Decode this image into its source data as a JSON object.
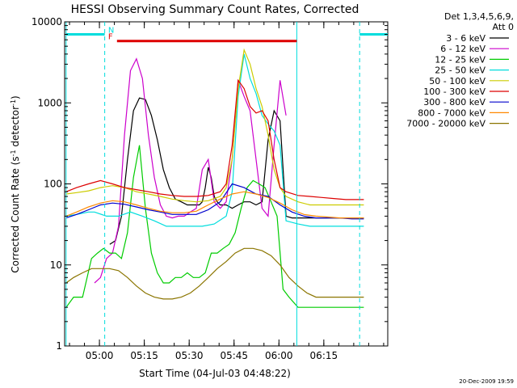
{
  "chart_data": {
    "type": "line",
    "title": "HESSI Observing Summary Count Rates, Corrected",
    "xlabel": "Start Time (04-Jul-03 04:48:22)",
    "ylabel": "Corrected Count Rate (s⁻¹ detector⁻¹)",
    "ylabel_main": "Corrected Count Rate (s",
    "ylabel_sup1": "-1",
    "ylabel_mid": " detector",
    "ylabel_sup2": "-1",
    "ylabel_end": ")",
    "x_unit": "minutes since 04:48:22",
    "xlim": [
      0,
      108
    ],
    "ylim": [
      1,
      10000
    ],
    "log_y": true,
    "x_ticks": [
      {
        "x": 11.63,
        "label": "05:00"
      },
      {
        "x": 26.63,
        "label": "05:15"
      },
      {
        "x": 41.63,
        "label": "05:30"
      },
      {
        "x": 56.63,
        "label": "05:45"
      },
      {
        "x": 71.63,
        "label": "06:00"
      },
      {
        "x": 86.63,
        "label": "06:15"
      }
    ],
    "y_ticks": [
      {
        "y": 1,
        "label": "1"
      },
      {
        "y": 10,
        "label": "10"
      },
      {
        "y": 100,
        "label": "100"
      },
      {
        "y": 1000,
        "label": "1000"
      },
      {
        "y": 10000,
        "label": "10000"
      }
    ],
    "legend_title": "Det 1,3,4,5,6,9,",
    "legend_title2": "Att 0",
    "legend_placement": "right",
    "series": [
      {
        "name": "3 - 6 keV",
        "color": "#000000",
        "x": [
          0.5,
          10,
          15,
          15.1,
          17,
          19,
          21,
          23,
          25,
          27,
          29,
          31,
          33,
          35,
          37,
          39,
          41,
          43,
          45,
          46,
          47,
          48,
          49,
          50,
          51,
          52,
          54,
          56,
          58,
          60,
          62,
          64,
          66,
          68,
          70,
          72,
          74,
          76,
          78,
          80,
          82,
          84,
          86,
          88,
          90,
          92,
          94,
          96,
          98,
          100
        ],
        "y": [
          null,
          null,
          null,
          18,
          20,
          40,
          200,
          800,
          1150,
          1100,
          700,
          350,
          150,
          90,
          65,
          60,
          55,
          55,
          55,
          60,
          90,
          160,
          120,
          70,
          60,
          55,
          55,
          50,
          55,
          60,
          60,
          55,
          60,
          350,
          800,
          600,
          40,
          38,
          38,
          38,
          38,
          38,
          38,
          38,
          38,
          38,
          38,
          38,
          38,
          38
        ]
      },
      {
        "name": "6 - 12 keV",
        "color": "#cc00cc",
        "x": [
          10,
          12,
          14,
          16,
          18,
          20,
          22,
          24,
          26,
          28,
          30,
          32,
          34,
          36,
          38,
          40,
          42,
          44,
          46,
          48,
          50,
          52,
          54,
          56,
          58,
          60,
          62,
          64,
          66,
          68,
          70,
          72,
          74
        ],
        "y": [
          6,
          7,
          12,
          14,
          30,
          400,
          2500,
          3500,
          2000,
          400,
          120,
          55,
          40,
          38,
          40,
          40,
          45,
          50,
          150,
          200,
          60,
          50,
          60,
          200,
          1900,
          1200,
          800,
          200,
          50,
          40,
          300,
          1900,
          700
        ]
      },
      {
        "name": "12 - 25 keV",
        "color": "#00cc00",
        "x": [
          0.5,
          3,
          6,
          9,
          11,
          13,
          15,
          17,
          19,
          21,
          23,
          25,
          27,
          29,
          31,
          33,
          35,
          37,
          39,
          41,
          43,
          45,
          47,
          49,
          51,
          53,
          55,
          57,
          59,
          61,
          63,
          65,
          67,
          69,
          71,
          73,
          75,
          78,
          81,
          84,
          87,
          90,
          93,
          96,
          100
        ],
        "y": [
          3,
          4,
          4,
          12,
          14,
          16,
          14,
          14,
          12,
          25,
          120,
          300,
          50,
          14,
          8,
          6,
          6,
          7,
          7,
          8,
          7,
          7,
          8,
          14,
          14,
          16,
          18,
          25,
          50,
          90,
          110,
          100,
          90,
          60,
          40,
          5,
          4,
          3,
          3,
          3,
          3,
          3,
          3,
          3,
          3
        ]
      },
      {
        "name": "25 - 50 keV",
        "color": "#00dddd",
        "x": [
          0.5,
          4,
          8,
          10,
          14,
          18,
          22,
          26,
          30,
          34,
          38,
          42,
          46,
          50,
          54,
          56,
          58,
          60,
          62,
          64,
          66,
          68,
          70,
          72,
          74,
          78,
          82,
          86,
          90,
          94,
          98,
          100
        ],
        "y": [
          40,
          42,
          45,
          45,
          40,
          40,
          45,
          40,
          35,
          30,
          30,
          30,
          30,
          32,
          40,
          80,
          1200,
          4000,
          2000,
          1300,
          700,
          550,
          450,
          300,
          35,
          32,
          30,
          30,
          30,
          30,
          30,
          30
        ]
      },
      {
        "name": "50 - 100 keV",
        "color": "#cccc00",
        "x": [
          0.5,
          4,
          8,
          12,
          16,
          20,
          24,
          28,
          32,
          36,
          40,
          44,
          48,
          52,
          54,
          56,
          58,
          60,
          62,
          64,
          66,
          68,
          70,
          72,
          74,
          78,
          82,
          86,
          90,
          94,
          98,
          100
        ],
        "y": [
          75,
          78,
          82,
          90,
          95,
          90,
          80,
          75,
          70,
          65,
          62,
          60,
          62,
          70,
          90,
          200,
          1500,
          4500,
          3000,
          1500,
          900,
          400,
          150,
          90,
          70,
          60,
          55,
          55,
          55,
          55,
          55,
          55
        ]
      },
      {
        "name": "100 - 300 keV",
        "color": "#dd0000",
        "x": [
          0.5,
          4,
          8,
          12,
          16,
          20,
          24,
          28,
          32,
          36,
          40,
          44,
          48,
          52,
          54,
          56,
          58,
          60,
          62,
          64,
          66,
          68,
          70,
          72,
          74,
          78,
          82,
          86,
          90,
          94,
          98,
          100
        ],
        "y": [
          80,
          90,
          100,
          110,
          100,
          90,
          85,
          80,
          75,
          72,
          70,
          70,
          72,
          80,
          100,
          300,
          1900,
          1500,
          900,
          750,
          800,
          600,
          200,
          90,
          80,
          72,
          70,
          68,
          66,
          64,
          64,
          64
        ]
      },
      {
        "name": "300 - 800 keV",
        "color": "#0000cc",
        "x": [
          0.5,
          4,
          8,
          12,
          16,
          20,
          24,
          28,
          32,
          36,
          40,
          44,
          48,
          52,
          56,
          60,
          64,
          68,
          72,
          76,
          80,
          84,
          88,
          92,
          96,
          100
        ],
        "y": [
          38,
          42,
          48,
          55,
          58,
          56,
          52,
          48,
          45,
          42,
          42,
          42,
          48,
          60,
          100,
          90,
          75,
          70,
          55,
          45,
          40,
          38,
          38,
          38,
          37,
          37
        ]
      },
      {
        "name": "800 - 7000 keV",
        "color": "#ff8800",
        "x": [
          0.5,
          4,
          8,
          12,
          16,
          20,
          24,
          28,
          32,
          36,
          40,
          44,
          48,
          52,
          56,
          60,
          64,
          68,
          72,
          76,
          80,
          84,
          88,
          92,
          96,
          100
        ],
        "y": [
          40,
          45,
          52,
          58,
          62,
          60,
          55,
          50,
          46,
          44,
          44,
          46,
          55,
          65,
          75,
          80,
          75,
          68,
          58,
          48,
          42,
          40,
          39,
          38,
          38,
          38
        ]
      },
      {
        "name": "7000 - 20000 keV",
        "color": "#8b7500",
        "x": [
          0.5,
          3,
          6,
          9,
          12,
          15,
          18,
          21,
          24,
          27,
          30,
          33,
          36,
          39,
          42,
          45,
          48,
          51,
          54,
          57,
          60,
          63,
          66,
          69,
          72,
          75,
          78,
          81,
          84,
          87,
          90,
          93,
          96,
          100
        ],
        "y": [
          6,
          7,
          8,
          9,
          9,
          9,
          8.5,
          7,
          5.5,
          4.5,
          4,
          3.8,
          3.8,
          4,
          4.5,
          5.5,
          7,
          9,
          11,
          14,
          16,
          16,
          15,
          13,
          10,
          7,
          5.5,
          4.5,
          4,
          4,
          4,
          4,
          4,
          4
        ]
      }
    ],
    "annotations": [
      {
        "kind": "state_bar",
        "label": "N",
        "color": "#00dddd",
        "segments": [
          [
            0.5,
            13.4
          ],
          [
            98.6,
            108
          ]
        ],
        "level": 7000
      },
      {
        "kind": "state_bar",
        "label": "F",
        "color": "#dd0000",
        "segments": [
          [
            17.5,
            77.6
          ]
        ],
        "level": 5800
      }
    ],
    "vlines": [
      {
        "x": 0.5,
        "color": "#00dddd",
        "style": "solid"
      },
      {
        "x": 13.4,
        "color": "#00dddd",
        "style": "dashed"
      },
      {
        "x": 77.6,
        "color": "#00dddd",
        "style": "solid"
      },
      {
        "x": 98.6,
        "color": "#00dddd",
        "style": "dashed"
      }
    ],
    "grid": false
  },
  "footer": {
    "timestamp": "20-Dec-2009 19:59"
  }
}
